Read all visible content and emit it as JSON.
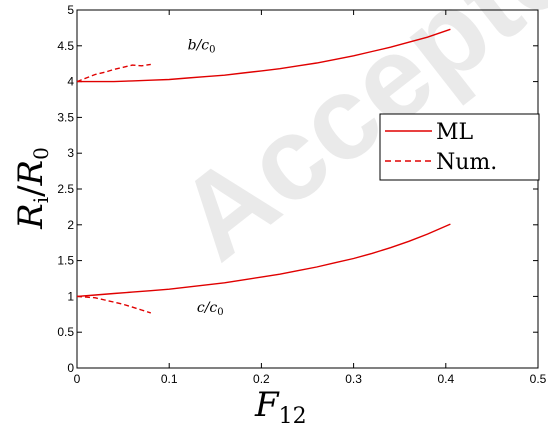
{
  "watermark": "Accepted",
  "chart_data": {
    "type": "line",
    "xlabel": "F12",
    "xlabel_main": "F",
    "xlabel_sub": "12",
    "ylabel": "Ri/R0",
    "ylabel_parts": {
      "a": "R",
      "a_sub": "i",
      "slash": "/",
      "b": "R",
      "b_sub": "0"
    },
    "xlim": [
      0,
      0.5
    ],
    "ylim": [
      0,
      5
    ],
    "xticks": [
      0,
      0.1,
      0.2,
      0.3,
      0.4,
      0.5
    ],
    "xtick_labels": [
      "0",
      "0.1",
      "0.2",
      "0.3",
      "0.4",
      "0.5"
    ],
    "yticks": [
      0,
      0.5,
      1,
      1.5,
      2,
      2.5,
      3,
      3.5,
      4,
      4.5,
      5
    ],
    "ytick_labels": [
      "0",
      "0.5",
      "1",
      "1.5",
      "2",
      "2.5",
      "3",
      "3.5",
      "4",
      "4.5",
      "5"
    ],
    "grid": false,
    "legend_position": "right",
    "line_color": "#e00000",
    "legend": [
      {
        "label": "ML",
        "style": "solid"
      },
      {
        "label": "Num.",
        "style": "dashed"
      }
    ],
    "annotations": [
      {
        "text_main": "b/c",
        "text_sub": "0",
        "x": 0.12,
        "y": 4.45
      },
      {
        "text_main": "c/c",
        "text_sub": "0",
        "x": 0.13,
        "y": 0.78
      }
    ],
    "series": [
      {
        "legend": "ML",
        "style": "solid",
        "x": [
          0,
          0.02,
          0.04,
          0.06,
          0.08,
          0.1,
          0.12,
          0.14,
          0.16,
          0.18,
          0.2,
          0.22,
          0.24,
          0.26,
          0.28,
          0.3,
          0.32,
          0.34,
          0.36,
          0.38,
          0.405
        ],
        "y": [
          4.0,
          4.0,
          4.0,
          4.01,
          4.02,
          4.03,
          4.05,
          4.07,
          4.09,
          4.12,
          4.15,
          4.18,
          4.22,
          4.26,
          4.31,
          4.36,
          4.42,
          4.48,
          4.55,
          4.62,
          4.73
        ]
      },
      {
        "legend": "ML",
        "style": "solid",
        "x": [
          0,
          0.02,
          0.04,
          0.06,
          0.08,
          0.1,
          0.12,
          0.14,
          0.16,
          0.18,
          0.2,
          0.22,
          0.24,
          0.26,
          0.28,
          0.3,
          0.32,
          0.34,
          0.36,
          0.38,
          0.405
        ],
        "y": [
          1.0,
          1.02,
          1.04,
          1.06,
          1.08,
          1.1,
          1.13,
          1.16,
          1.19,
          1.23,
          1.27,
          1.31,
          1.36,
          1.41,
          1.47,
          1.53,
          1.6,
          1.68,
          1.77,
          1.87,
          2.01
        ]
      },
      {
        "legend": "Num.",
        "style": "dashed",
        "x": [
          0,
          0.01,
          0.02,
          0.03,
          0.04,
          0.05,
          0.06,
          0.07,
          0.08
        ],
        "y": [
          4.0,
          4.05,
          4.1,
          4.13,
          4.17,
          4.2,
          4.23,
          4.22,
          4.24
        ]
      },
      {
        "legend": "Num.",
        "style": "dashed",
        "x": [
          0,
          0.01,
          0.02,
          0.03,
          0.04,
          0.05,
          0.06,
          0.07,
          0.08
        ],
        "y": [
          1.0,
          0.99,
          0.98,
          0.95,
          0.92,
          0.89,
          0.85,
          0.81,
          0.77
        ]
      }
    ]
  }
}
